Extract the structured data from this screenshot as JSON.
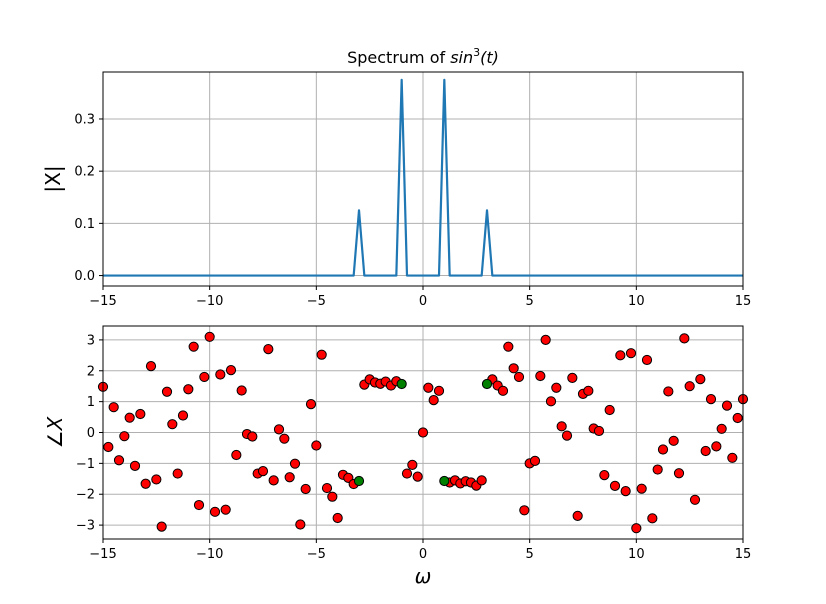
{
  "chart_data": [
    {
      "type": "line",
      "title_prefix": "Spectrum of ",
      "title_func": "sin",
      "title_sup": "3",
      "title_arg": "(t)",
      "ylabel": "|X|",
      "xlabel": "",
      "xlim": [
        -15,
        15
      ],
      "ylim": [
        -0.02,
        0.39
      ],
      "xticks": [
        -15,
        -10,
        -5,
        0,
        5,
        10,
        15
      ],
      "xtick_labels": [
        "−15",
        "−10",
        "−5",
        "0",
        "5",
        "10",
        "15"
      ],
      "yticks": [
        0.0,
        0.1,
        0.2,
        0.3
      ],
      "ytick_labels": [
        "0.0",
        "0.1",
        "0.2",
        "0.3"
      ],
      "grid": true,
      "line_color": "#1f77b4",
      "series": [
        {
          "x": [
            -15,
            -3.25,
            -3.0,
            -2.75,
            -1.25,
            -1.0,
            -0.75,
            0.75,
            1.0,
            1.25,
            2.75,
            3.0,
            3.25,
            15
          ],
          "y": [
            0,
            0,
            0.125,
            0,
            0,
            0.375,
            0,
            0,
            0.375,
            0,
            0,
            0.125,
            0,
            0
          ]
        }
      ]
    },
    {
      "type": "scatter",
      "xlabel": "ω",
      "ylabel_symbol": "∠",
      "ylabel_var": "X",
      "xlim": [
        -15,
        15
      ],
      "ylim": [
        -3.45,
        3.45
      ],
      "xticks": [
        -15,
        -10,
        -5,
        0,
        5,
        10,
        15
      ],
      "xtick_labels": [
        "−15",
        "−10",
        "−5",
        "0",
        "5",
        "10",
        "15"
      ],
      "yticks": [
        -3,
        -2,
        -1,
        0,
        1,
        2,
        3
      ],
      "ytick_labels": [
        "−3",
        "−2",
        "−1",
        "0",
        "1",
        "2",
        "3"
      ],
      "grid": true,
      "marker_edge_color": "#000000",
      "series": [
        {
          "color": "#ff0000",
          "points": [
            [
              -15.0,
              1.48
            ],
            [
              -14.75,
              -0.47
            ],
            [
              -14.5,
              0.82
            ],
            [
              -14.25,
              -0.9
            ],
            [
              -14.0,
              -0.12
            ],
            [
              -13.75,
              0.48
            ],
            [
              -13.5,
              -1.08
            ],
            [
              -13.25,
              0.6
            ],
            [
              -13.0,
              -1.66
            ],
            [
              -12.75,
              2.15
            ],
            [
              -12.5,
              -1.52
            ],
            [
              -12.25,
              -3.05
            ],
            [
              -12.0,
              1.32
            ],
            [
              -11.75,
              0.27
            ],
            [
              -11.5,
              -1.33
            ],
            [
              -11.25,
              0.55
            ],
            [
              -11.0,
              1.4
            ],
            [
              -10.75,
              2.78
            ],
            [
              -10.5,
              -2.35
            ],
            [
              -10.25,
              1.8
            ],
            [
              -10.0,
              3.1
            ],
            [
              -9.75,
              -2.57
            ],
            [
              -9.5,
              1.88
            ],
            [
              -9.25,
              -2.5
            ],
            [
              -9.0,
              2.02
            ],
            [
              -8.75,
              -0.73
            ],
            [
              -8.5,
              1.36
            ],
            [
              -8.25,
              -0.05
            ],
            [
              -8.0,
              -0.13
            ],
            [
              -7.75,
              -1.33
            ],
            [
              -7.5,
              -1.25
            ],
            [
              -7.25,
              2.7
            ],
            [
              -7.0,
              -1.55
            ],
            [
              -6.75,
              0.1
            ],
            [
              -6.5,
              -0.2
            ],
            [
              -6.25,
              -1.45
            ],
            [
              -6.0,
              -1.01
            ],
            [
              -5.75,
              -2.98
            ],
            [
              -5.5,
              -1.83
            ],
            [
              -5.25,
              0.92
            ],
            [
              -5.0,
              -0.42
            ],
            [
              -4.75,
              2.52
            ],
            [
              -4.5,
              -1.8
            ],
            [
              -4.25,
              -2.08
            ],
            [
              -4.0,
              -2.77
            ],
            [
              -3.75,
              -1.37
            ],
            [
              -3.5,
              -1.47
            ],
            [
              -3.25,
              -1.67
            ],
            [
              -2.75,
              1.55
            ],
            [
              -2.5,
              1.72
            ],
            [
              -2.25,
              1.62
            ],
            [
              -2.0,
              1.58
            ],
            [
              -1.75,
              1.65
            ],
            [
              -1.5,
              1.52
            ],
            [
              -1.25,
              1.66
            ],
            [
              -0.75,
              -1.33
            ],
            [
              -0.5,
              -1.05
            ],
            [
              -0.25,
              -1.43
            ],
            [
              0.0,
              0.0
            ],
            [
              0.25,
              1.45
            ],
            [
              0.5,
              1.05
            ],
            [
              0.75,
              1.35
            ],
            [
              1.25,
              -1.62
            ],
            [
              1.5,
              -1.55
            ],
            [
              1.75,
              -1.65
            ],
            [
              2.0,
              -1.58
            ],
            [
              2.25,
              -1.62
            ],
            [
              2.5,
              -1.72
            ],
            [
              2.75,
              -1.55
            ],
            [
              3.25,
              1.72
            ],
            [
              3.5,
              1.52
            ],
            [
              3.75,
              1.35
            ],
            [
              4.0,
              2.78
            ],
            [
              4.25,
              2.08
            ],
            [
              4.5,
              1.8
            ],
            [
              4.75,
              -2.52
            ],
            [
              5.0,
              -1.0
            ],
            [
              5.25,
              -0.92
            ],
            [
              5.5,
              1.83
            ],
            [
              5.75,
              3.0
            ],
            [
              6.0,
              1.01
            ],
            [
              6.25,
              1.45
            ],
            [
              6.5,
              0.2
            ],
            [
              6.75,
              -0.1
            ],
            [
              7.0,
              1.77
            ],
            [
              7.25,
              -2.7
            ],
            [
              7.5,
              1.25
            ],
            [
              7.75,
              1.35
            ],
            [
              8.0,
              0.13
            ],
            [
              8.25,
              0.05
            ],
            [
              8.5,
              -1.38
            ],
            [
              8.75,
              0.73
            ],
            [
              9.0,
              -1.73
            ],
            [
              9.25,
              2.5
            ],
            [
              9.5,
              -1.9
            ],
            [
              9.75,
              2.57
            ],
            [
              10.0,
              -3.1
            ],
            [
              10.25,
              -1.82
            ],
            [
              10.5,
              2.35
            ],
            [
              10.75,
              -2.78
            ],
            [
              11.0,
              -1.2
            ],
            [
              11.25,
              -0.55
            ],
            [
              11.5,
              1.33
            ],
            [
              11.75,
              -0.27
            ],
            [
              12.0,
              -1.32
            ],
            [
              12.25,
              3.05
            ],
            [
              12.5,
              1.5
            ],
            [
              12.75,
              -2.18
            ],
            [
              13.0,
              1.73
            ],
            [
              13.25,
              -0.6
            ],
            [
              13.5,
              1.08
            ],
            [
              13.75,
              -0.45
            ],
            [
              14.0,
              0.12
            ],
            [
              14.25,
              0.87
            ],
            [
              14.5,
              -0.82
            ],
            [
              14.75,
              0.47
            ],
            [
              15.0,
              1.08
            ]
          ]
        },
        {
          "color": "#008000",
          "points": [
            [
              -3.0,
              -1.5708
            ],
            [
              -1.0,
              1.5708
            ],
            [
              1.0,
              -1.5708
            ],
            [
              3.0,
              1.5708
            ]
          ]
        }
      ]
    }
  ]
}
